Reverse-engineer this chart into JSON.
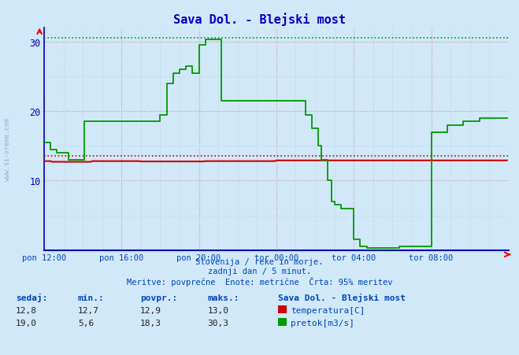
{
  "title": "Sava Dol. - Blejski most",
  "title_color": "#0000cc",
  "bg_color": "#d0e8f8",
  "plot_bg_color": "#d0e8f8",
  "grid_color_major_h": "#cc9999",
  "grid_color_minor": "#bbccdd",
  "xlim_max": 288,
  "ylim": [
    0,
    32
  ],
  "yticks": [
    10,
    20,
    30
  ],
  "xtick_labels": [
    "pon 12:00",
    "pon 16:00",
    "pon 20:00",
    "tor 00:00",
    "tor 04:00",
    "tor 08:00"
  ],
  "xtick_positions": [
    0,
    48,
    96,
    144,
    192,
    240
  ],
  "temp_color": "#cc0000",
  "flow_color": "#009900",
  "temp_dotted_y": 13.5,
  "flow_dotted_y": 30.5,
  "temp_min": 12.7,
  "temp_max": 13.0,
  "temp_avg": 12.9,
  "temp_now": 12.8,
  "flow_min": 5.6,
  "flow_max": 30.3,
  "flow_avg": 18.3,
  "flow_now": 19.0,
  "subtitle1": "Slovenija / reke in morje.",
  "subtitle2": "zadnji dan / 5 minut.",
  "subtitle3": "Meritve: povprečne  Enote: metrične  Črta: 95% meritev",
  "legend_title": "Sava Dol. - Blejski most",
  "label_color": "#0044bb",
  "axis_color": "#0000bb",
  "watermark": "www.si-vreme.com"
}
